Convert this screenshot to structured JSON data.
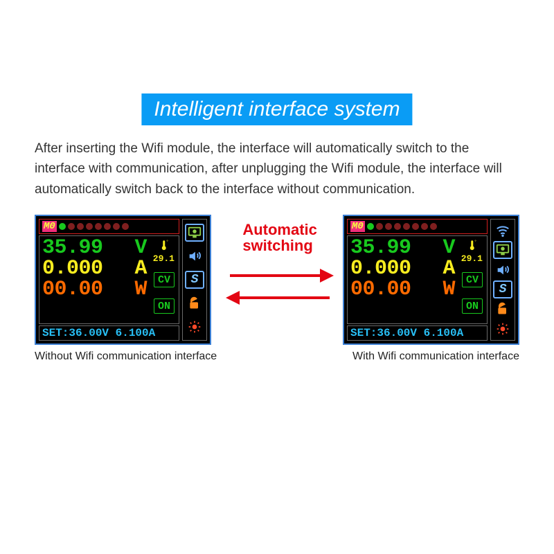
{
  "heading": {
    "text": "Intelligent interface system",
    "bg": "#0a9cf5",
    "fg": "#ffffff"
  },
  "description": "After inserting the Wifi module, the interface will automatically switch to the interface with communication, after unplugging the Wifi module, the interface will automatically switch back to the interface without communication.",
  "switch_label_line1": "Automatic",
  "switch_label_line2": "switching",
  "switch_color": "#e30613",
  "captions": {
    "left": "Without Wifi communication interface",
    "right": "With Wifi communication interface"
  },
  "lcd": {
    "outer_border": "#3b7fd4",
    "inner_border": "#6a6a6a",
    "top_border": "#d41f1f",
    "bg": "#000000",
    "mode_label": "M0",
    "mode_bg": "#ef2e7a",
    "mode_fg": "#f6ff3d",
    "dot_connected": "#18c91e",
    "dot_off": "#7f1f1f",
    "voltage": {
      "value": "35.99",
      "unit": "V",
      "color": "#18c91e"
    },
    "current": {
      "value": "0.000",
      "unit": "A",
      "color": "#f7ec1f"
    },
    "power": {
      "value": "00.00",
      "unit": "W",
      "color": "#ff6a00"
    },
    "temp": {
      "value": "29.1",
      "unit": "℃",
      "color": "#f7ec1f"
    },
    "cv": {
      "label": "CV",
      "border": "#18c91e",
      "fg": "#18c91e"
    },
    "on": {
      "label": "ON",
      "border": "#18c91e",
      "fg": "#18c91e"
    },
    "set": {
      "label": "SET:",
      "v": "36.00V",
      "a": "6.100A",
      "color": "#28bff5"
    },
    "side_icon_color": "#8fcf4a",
    "side_icon_box_border": "#6fb0ff",
    "wifi_icon_color": "#6fb0ff",
    "speaker_blue_fg": "#6fb0ff",
    "unlock_color": "#ff8a1a",
    "bulb_color": "#ff4a2a"
  }
}
